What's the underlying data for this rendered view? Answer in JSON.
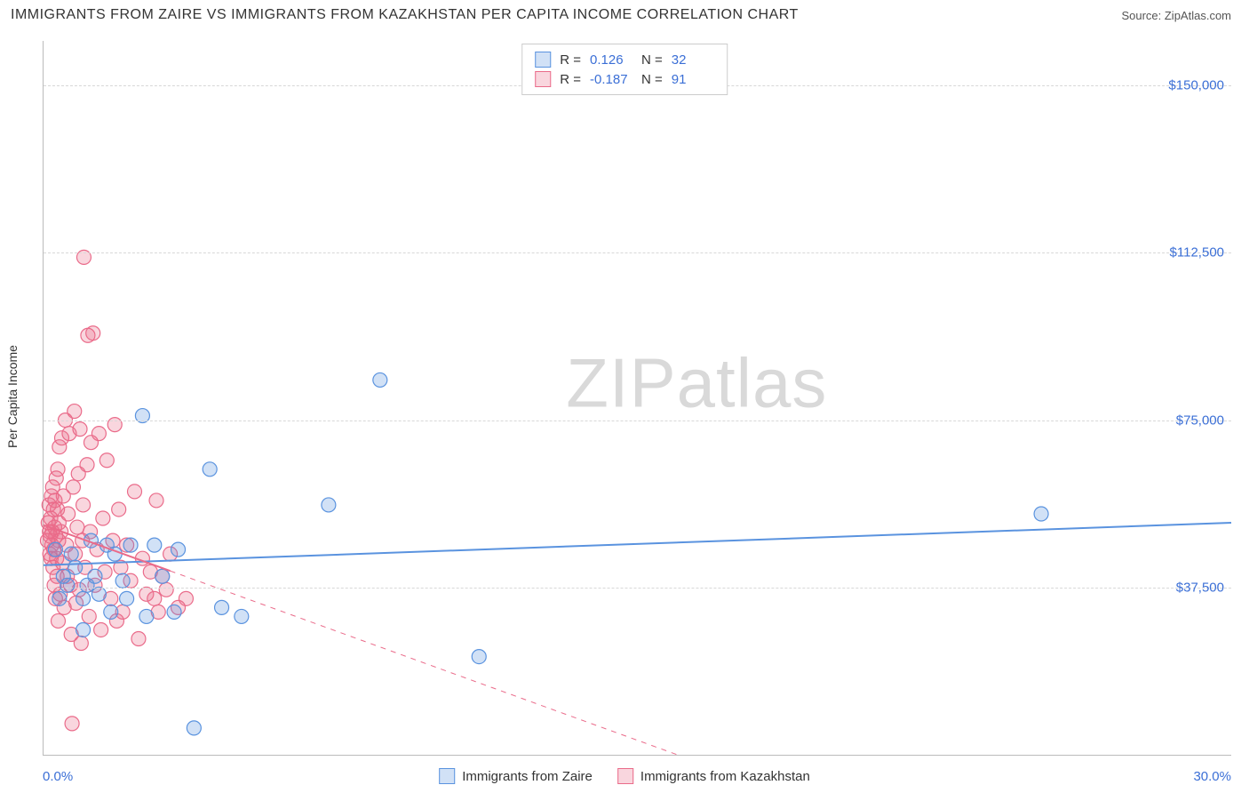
{
  "header": {
    "title": "IMMIGRANTS FROM ZAIRE VS IMMIGRANTS FROM KAZAKHSTAN PER CAPITA INCOME CORRELATION CHART",
    "source": "Source: ZipAtlas.com"
  },
  "watermark": {
    "part1": "ZIP",
    "part2": "atlas"
  },
  "chart": {
    "type": "scatter",
    "background_color": "#ffffff",
    "grid_color": "#d8d8d8",
    "axis_color": "#bbbbbb",
    "ylabel": "Per Capita Income",
    "label_fontsize": 14,
    "tick_fontsize": 15,
    "tick_color": "#3b6fd6",
    "xlim": [
      0,
      30
    ],
    "ylim": [
      0,
      160000
    ],
    "x_tick_labels": [
      "0.0%",
      "30.0%"
    ],
    "y_ticks": [
      37500,
      75000,
      112500,
      150000
    ],
    "y_tick_labels": [
      "$37,500",
      "$75,000",
      "$112,500",
      "$150,000"
    ],
    "marker_radius": 8,
    "marker_stroke_width": 1.2,
    "marker_fill_opacity": 0.28,
    "series": [
      {
        "name": "Immigrants from Zaire",
        "color": "#5a93df",
        "fill": "#5a93df",
        "r_value": "0.126",
        "n_value": "32",
        "regression": {
          "y_at_x0": 42500,
          "y_at_x30": 52000,
          "solid_until_x": 30,
          "line_width": 2
        },
        "points": [
          [
            0.3,
            46000
          ],
          [
            0.4,
            35000
          ],
          [
            0.5,
            40000
          ],
          [
            0.6,
            38000
          ],
          [
            0.7,
            45000
          ],
          [
            0.8,
            42000
          ],
          [
            1.0,
            28000
          ],
          [
            1.0,
            35000
          ],
          [
            1.1,
            38000
          ],
          [
            1.2,
            48000
          ],
          [
            1.3,
            40000
          ],
          [
            1.4,
            36000
          ],
          [
            1.6,
            47000
          ],
          [
            1.7,
            32000
          ],
          [
            1.8,
            45000
          ],
          [
            2.0,
            39000
          ],
          [
            2.1,
            35000
          ],
          [
            2.2,
            47000
          ],
          [
            2.5,
            76000
          ],
          [
            2.6,
            31000
          ],
          [
            2.8,
            47000
          ],
          [
            3.0,
            40000
          ],
          [
            3.3,
            32000
          ],
          [
            3.4,
            46000
          ],
          [
            3.8,
            6000
          ],
          [
            4.2,
            64000
          ],
          [
            4.5,
            33000
          ],
          [
            5.0,
            31000
          ],
          [
            7.2,
            56000
          ],
          [
            8.5,
            84000
          ],
          [
            11.0,
            22000
          ],
          [
            25.2,
            54000
          ]
        ]
      },
      {
        "name": "Immigrants from Kazakhstan",
        "color": "#ea6b8a",
        "fill": "#ea6b8a",
        "r_value": "-0.187",
        "n_value": "91",
        "regression": {
          "y_at_x0": 51500,
          "y_at_x30": -45000,
          "solid_until_x": 3.2,
          "line_width": 2
        },
        "points": [
          [
            0.1,
            48000
          ],
          [
            0.12,
            52000
          ],
          [
            0.14,
            56000
          ],
          [
            0.15,
            50000
          ],
          [
            0.16,
            45000
          ],
          [
            0.17,
            49000
          ],
          [
            0.18,
            53000
          ],
          [
            0.19,
            44000
          ],
          [
            0.2,
            58000
          ],
          [
            0.21,
            47000
          ],
          [
            0.22,
            50000
          ],
          [
            0.23,
            60000
          ],
          [
            0.24,
            42000
          ],
          [
            0.25,
            55000
          ],
          [
            0.26,
            46000
          ],
          [
            0.27,
            38000
          ],
          [
            0.28,
            51000
          ],
          [
            0.29,
            57000
          ],
          [
            0.3,
            35000
          ],
          [
            0.31,
            49000
          ],
          [
            0.32,
            62000
          ],
          [
            0.33,
            44000
          ],
          [
            0.34,
            40000
          ],
          [
            0.35,
            55000
          ],
          [
            0.36,
            64000
          ],
          [
            0.37,
            30000
          ],
          [
            0.38,
            48000
          ],
          [
            0.39,
            52000
          ],
          [
            0.4,
            69000
          ],
          [
            0.42,
            36000
          ],
          [
            0.44,
            50000
          ],
          [
            0.46,
            71000
          ],
          [
            0.48,
            43000
          ],
          [
            0.5,
            58000
          ],
          [
            0.52,
            33000
          ],
          [
            0.55,
            75000
          ],
          [
            0.58,
            47000
          ],
          [
            0.6,
            40000
          ],
          [
            0.62,
            54000
          ],
          [
            0.65,
            72000
          ],
          [
            0.68,
            38000
          ],
          [
            0.7,
            27000
          ],
          [
            0.72,
            7000
          ],
          [
            0.75,
            60000
          ],
          [
            0.78,
            77000
          ],
          [
            0.8,
            45000
          ],
          [
            0.82,
            34000
          ],
          [
            0.85,
            51000
          ],
          [
            0.88,
            63000
          ],
          [
            0.9,
            37000
          ],
          [
            0.92,
            73000
          ],
          [
            0.95,
            25000
          ],
          [
            0.98,
            48000
          ],
          [
            1.0,
            56000
          ],
          [
            1.02,
            111500
          ],
          [
            1.05,
            42000
          ],
          [
            1.1,
            65000
          ],
          [
            1.12,
            94000
          ],
          [
            1.15,
            31000
          ],
          [
            1.18,
            50000
          ],
          [
            1.2,
            70000
          ],
          [
            1.25,
            94500
          ],
          [
            1.3,
            38000
          ],
          [
            1.35,
            46000
          ],
          [
            1.4,
            72000
          ],
          [
            1.45,
            28000
          ],
          [
            1.5,
            53000
          ],
          [
            1.55,
            41000
          ],
          [
            1.6,
            66000
          ],
          [
            1.7,
            35000
          ],
          [
            1.75,
            48000
          ],
          [
            1.8,
            74000
          ],
          [
            1.85,
            30000
          ],
          [
            1.9,
            55000
          ],
          [
            1.95,
            42000
          ],
          [
            2.0,
            32000
          ],
          [
            2.1,
            47000
          ],
          [
            2.2,
            39000
          ],
          [
            2.3,
            59000
          ],
          [
            2.4,
            26000
          ],
          [
            2.5,
            44000
          ],
          [
            2.6,
            36000
          ],
          [
            2.7,
            41000
          ],
          [
            2.8,
            35000
          ],
          [
            2.85,
            57000
          ],
          [
            2.9,
            32000
          ],
          [
            3.0,
            40000
          ],
          [
            3.1,
            37000
          ],
          [
            3.2,
            45000
          ],
          [
            3.4,
            33000
          ],
          [
            3.6,
            35000
          ]
        ]
      }
    ],
    "legend_stats": {
      "r_label": "R =",
      "n_label": "N ="
    },
    "bottom_legend": {
      "items": [
        "Immigrants from Zaire",
        "Immigrants from Kazakhstan"
      ]
    }
  }
}
